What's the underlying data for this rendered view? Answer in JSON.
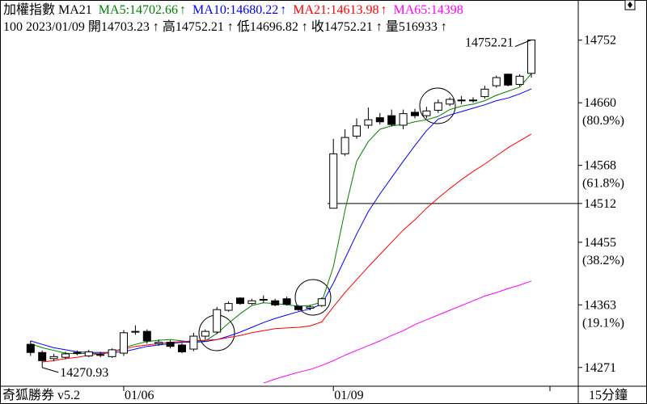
{
  "chart_data": {
    "type": "candlestick",
    "title": "加權指數 MA21",
    "info_line": "100 2023/01/09 開14703.23 ↑ 高14752.21 ↑ 低14696.82 ↑ 收14752.21 ↑ 量516933 ↑",
    "footer": "奇狐勝券 v5.2",
    "interval": "15分鐘",
    "categories": [
      null,
      null,
      null,
      null,
      null,
      null,
      null,
      null,
      "01/06",
      null,
      null,
      null,
      null,
      null,
      null,
      null,
      null,
      null,
      null,
      null,
      null,
      null,
      null,
      null,
      null,
      null,
      "01/09",
      null,
      null,
      null,
      null,
      null,
      null,
      null,
      null,
      null,
      null,
      null,
      null,
      null,
      null,
      null,
      null,
      null
    ],
    "open": [
      14305,
      14293,
      14284,
      14286,
      14292,
      14288,
      14289,
      14287,
      14292,
      14323,
      14324,
      14306,
      14308,
      14304,
      14298,
      14317,
      14323,
      14355,
      14373,
      14365,
      14370,
      14369,
      14372,
      14361,
      14358,
      14362,
      14505,
      14585,
      14611,
      14627,
      14638,
      14641,
      14627,
      14646,
      14641,
      14649,
      14658,
      14663,
      14664,
      14669,
      14685,
      14702,
      14687,
      14703.23
    ],
    "high": [
      14310,
      14296,
      14291,
      14294,
      14296,
      14297,
      14294,
      14299,
      14326,
      14333,
      14327,
      14312,
      14311,
      14307,
      14322,
      14327,
      14360,
      14368,
      14374,
      14372,
      14377,
      14372,
      14375,
      14363,
      14363,
      14374,
      14607,
      14621,
      14637,
      14653,
      14645,
      14650,
      14650,
      14651,
      14654,
      14665,
      14668,
      14670,
      14668,
      14685,
      14700,
      14703,
      14702,
      14752.21
    ],
    "low": [
      14288,
      14270.93,
      14280,
      14283,
      14289,
      14286,
      14286,
      14285,
      14288,
      14319,
      14306,
      14303,
      14299,
      14292,
      14295,
      14312,
      14320,
      14353,
      14363,
      14363,
      14366,
      14361,
      14362,
      14354,
      14355,
      14360,
      14505,
      14582,
      14607,
      14622,
      14628,
      14625,
      14621,
      14637,
      14637,
      14645,
      14655,
      14658,
      14660,
      14666,
      14682,
      14684,
      14684,
      14696.82
    ],
    "close": [
      14293,
      14281,
      14287,
      14291,
      14293,
      14294,
      14290,
      14297,
      14322,
      14324,
      14310,
      14308,
      14302,
      14294,
      14317,
      14324,
      14356,
      14365,
      14365,
      14369,
      14371,
      14363,
      14364,
      14356,
      14360,
      14372,
      14585,
      14609,
      14626,
      14635,
      14632,
      14628,
      14644,
      14641,
      14648,
      14660,
      14665,
      14664,
      14663,
      14680,
      14697,
      14686,
      14699,
      14752.21
    ],
    "up_color": "#ffffff",
    "down_color": "#000000",
    "series": [
      {
        "name": "MA5:14702.66",
        "trend": "↑",
        "color": "#008000",
        "values": [
          14306,
          14300,
          14296,
          14292,
          14291,
          14292,
          14291,
          14293,
          14300,
          14305,
          14309,
          14311,
          14312,
          14310,
          14308,
          14310,
          14321,
          14336,
          14350,
          14362,
          14366,
          14365,
          14363,
          14361,
          14362,
          14367,
          14419,
          14502,
          14574,
          14603,
          14621,
          14626,
          14628,
          14632,
          14635,
          14640,
          14650,
          14655,
          14658,
          14663,
          14671,
          14677,
          14683,
          14702.66
        ]
      },
      {
        "name": "MA10:14680.22",
        "trend": "↑",
        "color": "#0000ff",
        "values": [
          14310,
          14305,
          14300,
          14297,
          14294,
          14293,
          14293,
          14293,
          14294,
          14298,
          14302,
          14304,
          14306,
          14308,
          14308,
          14309,
          14312,
          14317,
          14323,
          14330,
          14337,
          14343,
          14348,
          14353,
          14357,
          14364,
          14395,
          14431,
          14467,
          14500,
          14526,
          14550,
          14574,
          14597,
          14619,
          14636,
          14642,
          14647,
          14652,
          14657,
          14663,
          14667,
          14673,
          14680.22
        ]
      },
      {
        "name": "MA21:14613.98",
        "trend": "↑",
        "color": "#ff0000",
        "values": [
          null,
          14279,
          14281,
          14284,
          14286,
          14289,
          14291,
          14294,
          14298,
          14302,
          14304,
          14306,
          14308,
          14309,
          14310,
          14311,
          14312,
          14315,
          14318,
          14322,
          14325,
          14328,
          14329,
          14330,
          14332,
          14338,
          14360,
          14381,
          14400,
          14419,
          14437,
          14455,
          14473,
          14488,
          14505,
          14520,
          14534,
          14547,
          14559,
          14570,
          14582,
          14594,
          14604,
          14613.98
        ]
      },
      {
        "name": "MA65:14398",
        "color": "#ff00ff",
        "values": [
          null,
          null,
          null,
          null,
          null,
          null,
          null,
          null,
          null,
          null,
          null,
          null,
          null,
          null,
          null,
          null,
          null,
          null,
          null,
          null,
          14248,
          14254,
          14259,
          14264,
          14268,
          14274,
          14281,
          14289,
          14296,
          14303,
          14310,
          14318,
          14325,
          14334,
          14341,
          14348,
          14355,
          14362,
          14369,
          14376,
          14381,
          14387,
          14392,
          14398
        ]
      }
    ],
    "ylim": [
      14247,
      14811
    ],
    "yticks": [
      14271,
      14363,
      14455,
      14512,
      14568,
      14660,
      14752
    ],
    "fib_labels": [
      {
        "value": 14363,
        "label": "(19.1%)"
      },
      {
        "value": 14455,
        "label": "(38.2%)"
      },
      {
        "value": 14568,
        "label": "(61.8%)"
      },
      {
        "value": 14660,
        "label": "(80.9%)"
      }
    ],
    "reference_line": 14512
  }
}
